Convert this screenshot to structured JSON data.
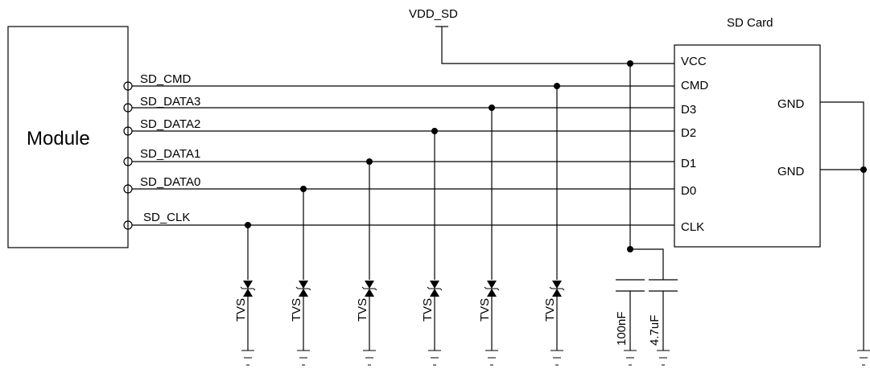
{
  "power": {
    "vdd": "VDD_SD"
  },
  "module": {
    "label": "Module"
  },
  "sd_card": {
    "title": "SD Card",
    "pins": [
      "VCC",
      "CMD",
      "D3",
      "D2",
      "D1",
      "D0",
      "CLK"
    ],
    "gnd_pins": [
      "GND",
      "GND"
    ]
  },
  "signals": [
    "SD_CMD",
    "SD_DATA3",
    "SD_DATA2",
    "SD_DATA1",
    "SD_DATA0",
    "SD_CLK"
  ],
  "tvs": {
    "label": "TVS"
  },
  "capacitors": [
    "100nF",
    "4.7uF"
  ]
}
